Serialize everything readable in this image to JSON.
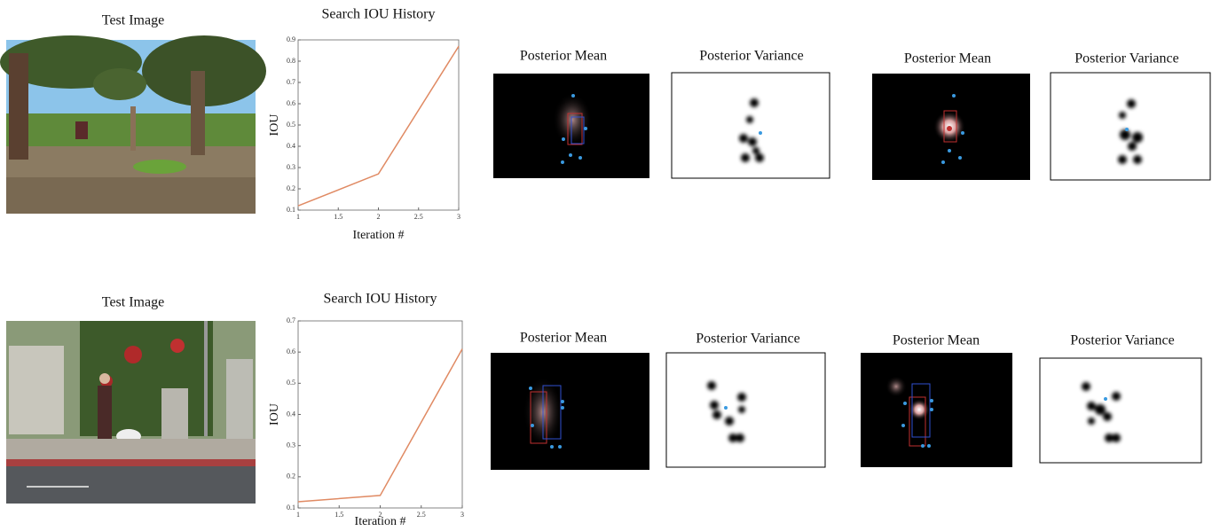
{
  "rows": [
    {
      "image_title": "Test Image",
      "posteriors": [
        {
          "mean_title": "Posterior Mean",
          "variance_title": "Posterior Variance"
        },
        {
          "mean_title": "Posterior Mean",
          "variance_title": "Posterior Variance"
        }
      ]
    },
    {
      "image_title": "Test Image",
      "posteriors": [
        {
          "mean_title": "Posterior Mean",
          "variance_title": "Posterior Variance"
        },
        {
          "mean_title": "Posterior Mean",
          "variance_title": "Posterior Variance"
        }
      ]
    }
  ],
  "chart_data": [
    {
      "type": "line",
      "title": "Search IOU History",
      "x_label": "Iteration #",
      "y_label": "IOU",
      "x": [
        1,
        2,
        3
      ],
      "values": [
        0.12,
        0.27,
        0.87
      ],
      "color": "#e08a63",
      "xlim": [
        1,
        3
      ],
      "xticks": [
        1,
        1.5,
        2,
        2.5,
        3
      ],
      "ylim": [
        0.1,
        0.9
      ],
      "yticks": [
        0.1,
        0.2,
        0.3,
        0.4,
        0.5,
        0.6,
        0.7,
        0.8,
        0.9
      ]
    },
    {
      "type": "line",
      "title": "Search IOU History",
      "x_label": "Iteration #",
      "y_label": "IOU",
      "x": [
        1,
        2,
        3
      ],
      "values": [
        0.12,
        0.14,
        0.61
      ],
      "color": "#e08a63",
      "xlim": [
        1,
        3
      ],
      "xticks": [
        1,
        1.5,
        2,
        2.5,
        3
      ],
      "ylim": [
        0.1,
        0.7
      ],
      "yticks": [
        0.1,
        0.2,
        0.3,
        0.4,
        0.5,
        0.6,
        0.7
      ]
    }
  ]
}
